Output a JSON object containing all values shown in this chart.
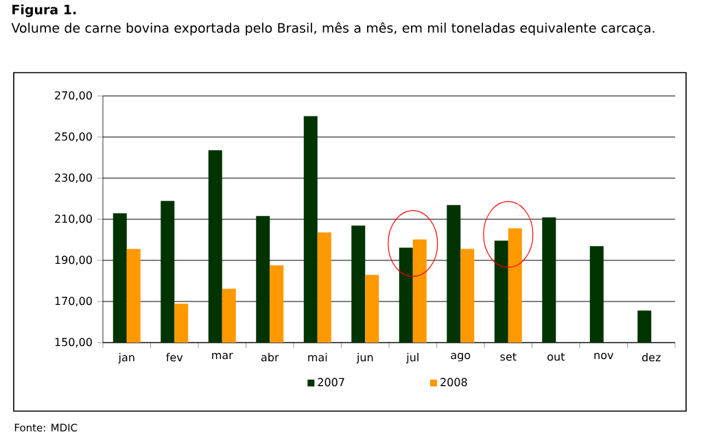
{
  "chart_data": {
    "type": "bar",
    "title": "Figura 1.",
    "subtitle": "Volume de carne bovina exportada pelo Brasil, mês a mês, em mil toneladas equivalente carcaça.",
    "categories": [
      "jan",
      "fev",
      "mar",
      "abr",
      "mai",
      "jun",
      "jul",
      "ago",
      "set",
      "out",
      "nov",
      "dez"
    ],
    "series": [
      {
        "name": "2007",
        "color": "#003300",
        "values": [
          212.9,
          218.9,
          243.6,
          211.6,
          260.2,
          206.9,
          196.2,
          216.9,
          199.6,
          210.9,
          196.9,
          165.6
        ]
      },
      {
        "name": "2008",
        "color": "#ff9900",
        "values": [
          195.6,
          168.9,
          176.2,
          187.6,
          203.6,
          182.9,
          200.2,
          195.6,
          205.6,
          null,
          null,
          null
        ]
      }
    ],
    "ylim": [
      150,
      270
    ],
    "yticks": [
      {
        "value": 150,
        "label": "150,00"
      },
      {
        "value": 170,
        "label": "170,00"
      },
      {
        "value": 190,
        "label": "190,00"
      },
      {
        "value": 210,
        "label": "210,00"
      },
      {
        "value": 230,
        "label": "230,00"
      },
      {
        "value": 250,
        "label": "250,00"
      },
      {
        "value": 270,
        "label": "270,00"
      }
    ],
    "grid": "y",
    "legend": "bottom",
    "annotations": [
      "Fonte: MDIC"
    ]
  }
}
